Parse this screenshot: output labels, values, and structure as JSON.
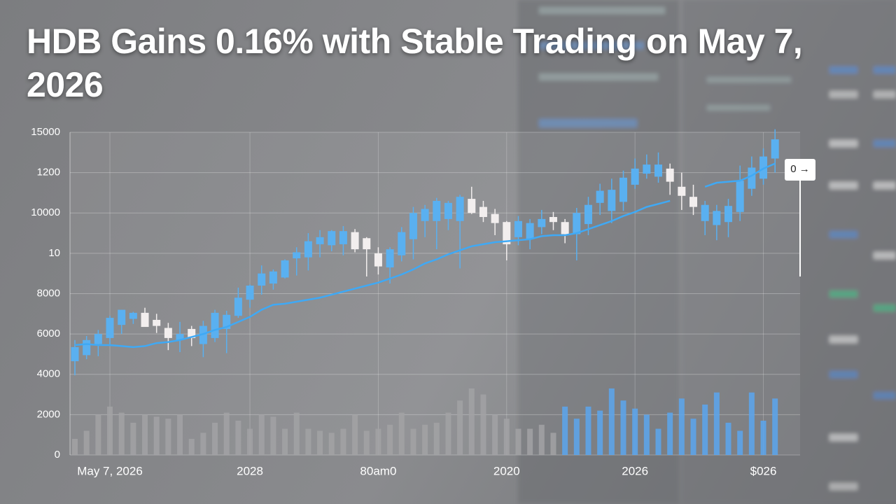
{
  "chart_data": {
    "type": "candlestick",
    "title": "HDB Gains 0.16% with Stable Trading on May 7, 2026",
    "annotation": "0 →",
    "ylim": [
      0,
      16000
    ],
    "yticks": [
      0,
      2000,
      4000,
      6000,
      8000,
      {
        "value": 10000,
        "label": "10"
      },
      {
        "value": 12000,
        "label": "10000"
      },
      {
        "value": 14000,
        "label": "1200"
      },
      {
        "value": 16000,
        "label": "15000"
      }
    ],
    "xticks": [
      {
        "value": 3,
        "label": "May 7, 2026"
      },
      {
        "value": 15,
        "label": "2028"
      },
      {
        "value": 26,
        "label": "80am0"
      },
      {
        "value": 37,
        "label": "2020"
      },
      {
        "value": 48,
        "label": "2026"
      },
      {
        "value": 59,
        "label": "$026"
      }
    ],
    "grid": true,
    "up_color": "#5ab0f0",
    "down_color": "#f2eeee",
    "ohlc": [
      [
        4650,
        5700,
        3950,
        5350
      ],
      [
        4950,
        5900,
        4750,
        5700
      ],
      [
        5500,
        6200,
        4900,
        6000
      ],
      [
        5800,
        6900,
        5400,
        6800
      ],
      [
        6450,
        7200,
        6000,
        7200
      ],
      [
        6750,
        7100,
        6500,
        7050
      ],
      [
        7050,
        7300,
        6450,
        6350
      ],
      [
        6700,
        7000,
        6050,
        6400
      ],
      [
        6300,
        6550,
        5200,
        5800
      ],
      [
        5700,
        6600,
        5100,
        6000
      ],
      [
        6250,
        6400,
        5400,
        5800
      ],
      [
        5500,
        6650,
        4850,
        6400
      ],
      [
        5800,
        7200,
        5600,
        7050
      ],
      [
        6250,
        7150,
        5050,
        6950
      ],
      [
        6900,
        8300,
        6800,
        7800
      ],
      [
        7700,
        8450,
        7300,
        8400
      ],
      [
        8400,
        9400,
        7950,
        9000
      ],
      [
        8500,
        9200,
        8200,
        9100
      ],
      [
        8800,
        9700,
        8750,
        9650
      ],
      [
        9750,
        10300,
        8900,
        10050
      ],
      [
        9800,
        11000,
        9150,
        10600
      ],
      [
        10450,
        11150,
        9800,
        10800
      ],
      [
        10400,
        11150,
        10100,
        11100
      ],
      [
        10450,
        11350,
        9900,
        11100
      ],
      [
        11050,
        11200,
        10050,
        10200
      ],
      [
        10750,
        10800,
        8850,
        10200
      ],
      [
        10000,
        10300,
        8950,
        9350
      ],
      [
        9300,
        10300,
        8500,
        10200
      ],
      [
        9900,
        11300,
        9600,
        11050
      ],
      [
        10700,
        12300,
        9700,
        12000
      ],
      [
        11600,
        12400,
        10800,
        12200
      ],
      [
        11600,
        12750,
        10200,
        12600
      ],
      [
        11700,
        12600,
        11150,
        12500
      ],
      [
        11600,
        12900,
        9250,
        12800
      ],
      [
        12700,
        13300,
        11950,
        12000
      ],
      [
        12300,
        12600,
        11550,
        11800
      ],
      [
        11950,
        12200,
        10900,
        11500
      ],
      [
        11550,
        11600,
        9650,
        10450
      ],
      [
        10800,
        11850,
        10400,
        11600
      ],
      [
        10700,
        11700,
        10200,
        11500
      ],
      [
        11300,
        12150,
        10950,
        11700
      ],
      [
        11800,
        12050,
        11150,
        11550
      ],
      [
        11550,
        11700,
        10500,
        10950
      ],
      [
        10950,
        12250,
        9650,
        12000
      ],
      [
        11450,
        12800,
        10900,
        12400
      ],
      [
        12500,
        13450,
        11900,
        13100
      ],
      [
        12100,
        13700,
        11500,
        13150
      ],
      [
        12550,
        14100,
        12100,
        13750
      ],
      [
        13400,
        14700,
        13200,
        14200
      ],
      [
        13950,
        14900,
        13700,
        14400
      ],
      [
        13800,
        15000,
        13500,
        14400
      ],
      [
        14200,
        14450,
        12900,
        13550
      ],
      [
        13300,
        14000,
        12150,
        12850
      ],
      [
        12800,
        13400,
        11900,
        12300
      ],
      [
        11600,
        12600,
        10900,
        12400
      ],
      [
        11400,
        12400,
        10650,
        12100
      ],
      [
        11550,
        12700,
        10800,
        12350
      ],
      [
        12050,
        14350,
        11600,
        13600
      ],
      [
        13200,
        14800,
        12850,
        14250
      ],
      [
        13700,
        15200,
        13400,
        14800
      ],
      [
        14700,
        16150,
        14000,
        15650
      ]
    ],
    "moving_average": {
      "color": "#3fa9f5",
      "values": [
        5450,
        5500,
        5450,
        5450,
        5400,
        5350,
        5400,
        5550,
        5600,
        5700,
        5850,
        6000,
        6200,
        6350,
        6600,
        6850,
        7200,
        7450,
        7500,
        7600,
        7700,
        7800,
        7950,
        8100,
        8250,
        8400,
        8550,
        8750,
        8950,
        9200,
        9500,
        9700,
        9950,
        10150,
        10350,
        10450,
        10550,
        10600,
        10650,
        10700,
        10850,
        10900,
        10900,
        11000,
        11200,
        11400,
        11600,
        11850,
        12050,
        12300,
        12450,
        12600,
        null,
        null,
        13300,
        13500,
        13550,
        13600,
        13850,
        14200,
        14450
      ]
    },
    "volume": {
      "values": [
        800,
        1200,
        2000,
        2400,
        2100,
        1600,
        2000,
        1900,
        1800,
        2000,
        800,
        1100,
        1600,
        2100,
        1700,
        1300,
        2000,
        1900,
        1300,
        2100,
        1300,
        1200,
        1100,
        1300,
        2000,
        1200,
        1300,
        1500,
        2100,
        1300,
        1500,
        1600,
        2100,
        2700,
        3300,
        3000,
        2000,
        1800,
        1300,
        1300,
        1500,
        1100,
        2400,
        1800,
        2400,
        2200,
        3300,
        2700,
        2300,
        2000,
        1300,
        2100,
        2800,
        1800,
        2500,
        3100,
        1600,
        1200,
        3100,
        1700,
        2800
      ],
      "colors": [
        "#a2a2a4",
        "#a2a2a4",
        "#a2a2a4",
        "#a2a2a4",
        "#a2a2a4",
        "#a2a2a4",
        "#a2a2a4",
        "#a2a2a4",
        "#a2a2a4",
        "#a2a2a4",
        "#a2a2a4",
        "#a2a2a4",
        "#a2a2a4",
        "#a2a2a4",
        "#a2a2a4",
        "#a2a2a4",
        "#a2a2a4",
        "#a2a2a4",
        "#a2a2a4",
        "#a2a2a4",
        "#a2a2a4",
        "#a2a2a4",
        "#a2a2a4",
        "#a2a2a4",
        "#a2a2a4",
        "#a2a2a4",
        "#a2a2a4",
        "#a2a2a4",
        "#a2a2a4",
        "#a2a2a4",
        "#a2a2a4",
        "#a2a2a4",
        "#a2a2a4",
        "#a2a2a4",
        "#a2a2a4",
        "#a2a2a4",
        "#a2a2a4",
        "#a2a2a4",
        "#a2a2a4",
        "#a2a2a4",
        "#a2a2a4",
        "#a2a2a4",
        "#5aa6ee",
        "#5aa6ee",
        "#5aa6ee",
        "#5aa6ee",
        "#5aa6ee",
        "#5aa6ee",
        "#5aa6ee",
        "#5aa6ee",
        "#5aa6ee",
        "#5aa6ee",
        "#5aa6ee",
        "#5aa6ee",
        "#5aa6ee",
        "#5aa6ee",
        "#5aa6ee",
        "#5aa6ee",
        "#5aa6ee",
        "#5aa6ee",
        "#5aa6ee"
      ]
    }
  }
}
